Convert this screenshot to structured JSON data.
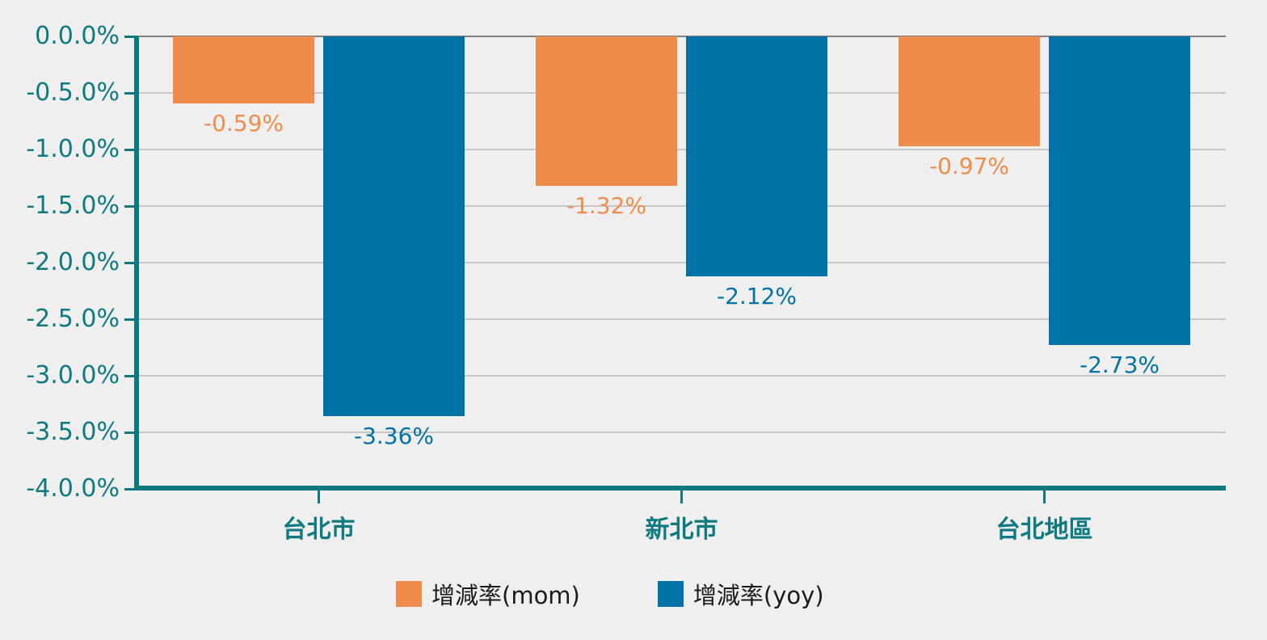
{
  "chart_data": {
    "type": "bar",
    "title": "",
    "orientation": "vertical-negative",
    "categories": [
      "台北市",
      "新北市",
      "台北地區"
    ],
    "series": [
      {
        "name": "增減率(mom)",
        "color": "#EF8C4B",
        "values": [
          -0.59,
          -1.32,
          -0.97
        ],
        "data_labels": [
          "-0.59%",
          "-1.32%",
          "-0.97%"
        ]
      },
      {
        "name": "增減率(yoy)",
        "color": "#0073A6",
        "values": [
          -3.36,
          -2.12,
          -2.73
        ],
        "data_labels": [
          "-3.36%",
          "-2.12%",
          "-2.73%"
        ]
      }
    ],
    "y_axis": {
      "min": -4,
      "max": 0,
      "tick_step": 0.5,
      "tick_labels": [
        "0.0.0%",
        "-0.5.0%",
        "-1.0.0%",
        "-1.5.0%",
        "-2.0.0%",
        "-2.5.0%",
        "-3.0.0%",
        "-3.5.0%",
        "-4.0.0%"
      ]
    },
    "grid": true,
    "legend_position": "bottom",
    "colors": {
      "background": "#EFEFEF",
      "axis": "#0E7A80",
      "axis_tick_label": "#0E7A80",
      "gridline": "#C6C6C6",
      "zero_gridline": "#7F7F7F",
      "legend_text": "#1A1A1A"
    }
  }
}
